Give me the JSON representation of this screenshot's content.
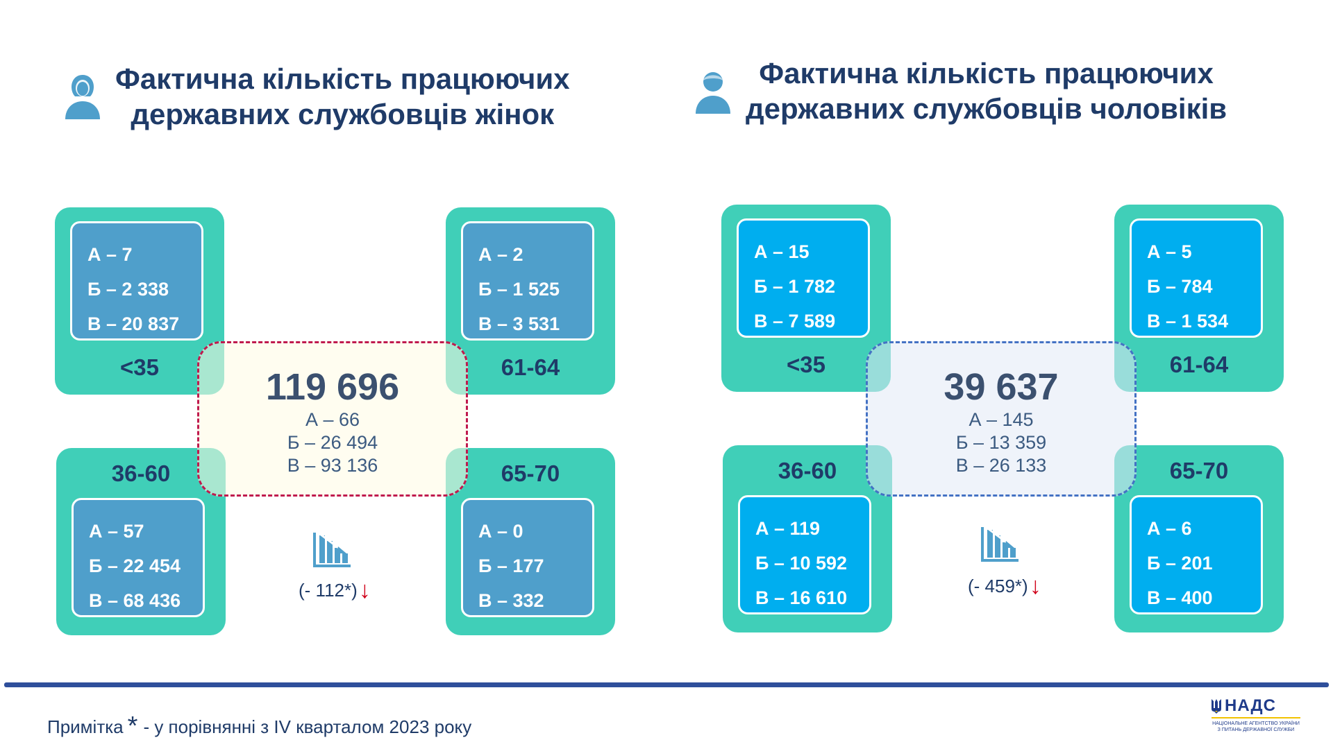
{
  "women": {
    "title_line1": "Фактична кількість працюючих",
    "title_line2": "державних службовців жінок",
    "icon": "female-person-icon",
    "age_groups": [
      {
        "label": "<35",
        "a": "А – 7",
        "b": "Б – 2 338",
        "v": "В – 20 837"
      },
      {
        "label": "61-64",
        "a": "А – 2",
        "b": "Б – 1 525",
        "v": "В – 3 531"
      },
      {
        "label": "36-60",
        "a": "А – 57",
        "b": "Б – 22 454",
        "v": "В – 68 436"
      },
      {
        "label": "65-70",
        "a": "А – 0",
        "b": "Б – 177",
        "v": "В – 332"
      }
    ],
    "total": "119 696",
    "total_a": "А – 66",
    "total_b": "Б – 26 494",
    "total_v": "В – 93 136",
    "change": "(- 112*)",
    "change_arrow": "↓"
  },
  "men": {
    "title_line1": "Фактична кількість працюючих",
    "title_line2": "державних службовців чоловіків",
    "icon": "male-person-icon",
    "age_groups": [
      {
        "label": "<35",
        "a": "А – 15",
        "b": "Б – 1 782",
        "v": "В – 7 589"
      },
      {
        "label": "61-64",
        "a": "А – 5",
        "b": "Б – 784",
        "v": "В – 1 534"
      },
      {
        "label": "36-60",
        "a": "А – 119",
        "b": "Б – 10 592",
        "v": "В – 16 610"
      },
      {
        "label": "65-70",
        "a": "А – 6",
        "b": "Б – 201",
        "v": "В – 400"
      }
    ],
    "total": "39 637",
    "total_a": "А – 145",
    "total_b": "Б – 13 359",
    "total_v": "В – 26 133",
    "change": "(- 459*)",
    "change_arrow": "↓"
  },
  "footnote": {
    "prefix": "Примітка",
    "star": "*",
    "text": "- у порівнянні з IV кварталом 2023 року"
  },
  "logo": {
    "name": "НАДС",
    "subtitle_line1": "НАЦІОНАЛЬНЕ АГЕНТСТВО УКРАЇНИ",
    "subtitle_line2": "З ПИТАНЬ ДЕРЖАВНОЇ СЛУЖБИ"
  },
  "colors": {
    "card_green": "#40cfb8",
    "women_inner": "#4f9fcb",
    "men_inner": "#00aeef",
    "title": "#1f3b68",
    "women_dash": "#c01a4e",
    "men_dash": "#4472c4",
    "arrow_red": "#d0021b"
  }
}
